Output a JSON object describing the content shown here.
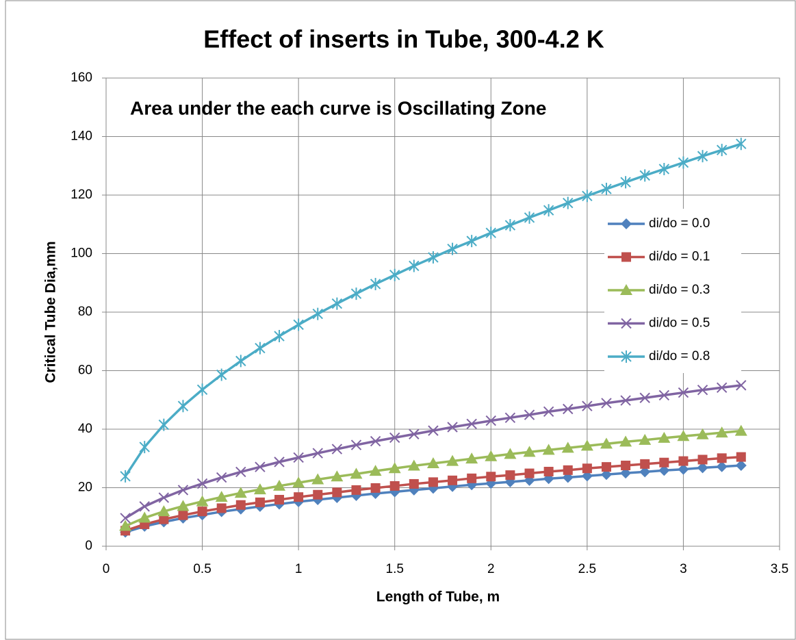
{
  "chart_data": {
    "type": "line",
    "title": "Effect of inserts in Tube, 300-4.2 K",
    "annotation": "Area under the each curve is Oscillating Zone",
    "xlabel": "Length of Tube, m",
    "ylabel": "Critical Tube Dia,mm",
    "x": [
      0.1,
      0.2,
      0.3,
      0.4,
      0.5,
      0.6,
      0.7,
      0.8,
      0.9,
      1.0,
      1.1,
      1.2,
      1.3,
      1.4,
      1.5,
      1.6,
      1.7,
      1.8,
      1.9,
      2.0,
      2.1,
      2.2,
      2.3,
      2.4,
      2.5,
      2.6,
      2.7,
      2.8,
      2.9,
      3.0,
      3.1,
      3.2,
      3.3
    ],
    "series": [
      {
        "name": "di/do = 0.0",
        "color": "#4f81bd",
        "marker": "diamond",
        "values": [
          4.8,
          6.8,
          8.3,
          9.6,
          10.7,
          11.8,
          12.7,
          13.6,
          14.4,
          15.2,
          15.9,
          16.6,
          17.3,
          18.0,
          18.6,
          19.2,
          19.8,
          20.4,
          21.0,
          21.5,
          22.0,
          22.5,
          23.1,
          23.5,
          24.0,
          24.5,
          25.0,
          25.4,
          25.9,
          26.3,
          26.8,
          27.2,
          27.6
        ]
      },
      {
        "name": "di/do = 0.1",
        "color": "#c0504d",
        "marker": "square",
        "values": [
          5.3,
          7.5,
          9.2,
          10.6,
          11.9,
          13.0,
          14.1,
          15.0,
          15.9,
          16.8,
          17.6,
          18.4,
          19.2,
          19.9,
          20.6,
          21.3,
          21.9,
          22.5,
          23.2,
          23.8,
          24.3,
          24.9,
          25.5,
          26.0,
          26.6,
          27.1,
          27.6,
          28.1,
          28.6,
          29.1,
          29.6,
          30.1,
          30.5
        ]
      },
      {
        "name": "di/do = 0.3",
        "color": "#9bbb59",
        "marker": "triangle",
        "values": [
          6.9,
          9.7,
          11.9,
          13.7,
          15.3,
          16.8,
          18.2,
          19.4,
          20.6,
          21.7,
          22.8,
          23.8,
          24.7,
          25.7,
          26.6,
          27.5,
          28.3,
          29.1,
          29.9,
          30.7,
          31.5,
          32.2,
          32.9,
          33.6,
          34.3,
          35.0,
          35.7,
          36.3,
          37.0,
          37.6,
          38.2,
          38.8,
          39.4
        ]
      },
      {
        "name": "di/do = 0.5",
        "color": "#8064a2",
        "marker": "x",
        "values": [
          9.6,
          13.6,
          16.6,
          19.2,
          21.4,
          23.5,
          25.4,
          27.1,
          28.8,
          30.3,
          31.8,
          33.2,
          34.6,
          35.9,
          37.1,
          38.3,
          39.5,
          40.7,
          41.8,
          42.9,
          43.9,
          44.9,
          46.0,
          46.9,
          47.9,
          48.9,
          49.8,
          50.7,
          51.6,
          52.5,
          53.4,
          54.2,
          55.0
        ]
      },
      {
        "name": "di/do = 0.8",
        "color": "#4bacc6",
        "marker": "star",
        "values": [
          23.9,
          33.9,
          41.5,
          47.9,
          53.5,
          58.6,
          63.3,
          67.7,
          71.8,
          75.7,
          79.4,
          82.9,
          86.3,
          89.6,
          92.7,
          95.8,
          98.7,
          101.6,
          104.3,
          107.1,
          109.7,
          112.3,
          114.8,
          117.3,
          119.7,
          122.1,
          124.4,
          126.7,
          128.9,
          131.1,
          133.3,
          135.4,
          137.5
        ]
      }
    ],
    "xlim": [
      0,
      3.5
    ],
    "xticks": [
      0,
      0.5,
      1,
      1.5,
      2,
      2.5,
      3,
      3.5
    ],
    "ylim": [
      0,
      160
    ],
    "yticks": [
      0,
      20,
      40,
      60,
      80,
      100,
      120,
      140,
      160
    ],
    "grid": true,
    "legend": "right"
  }
}
